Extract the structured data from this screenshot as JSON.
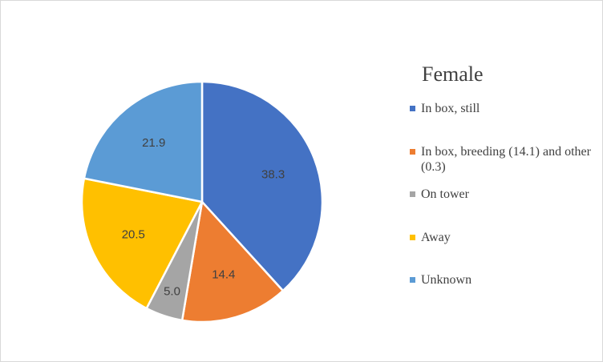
{
  "chart_data": {
    "type": "pie",
    "title": "Female",
    "categories": [
      "In box, still",
      "In box, breeding (14.1) and other (0.3)",
      "On tower",
      "Away",
      "Unknown"
    ],
    "values": [
      38.3,
      14.4,
      5.0,
      20.5,
      21.9
    ],
    "value_labels": [
      "38.3",
      "14.4",
      "5.0",
      "20.5",
      "21.9"
    ],
    "colors": [
      "#4472C4",
      "#ED7D31",
      "#A5A5A5",
      "#FFC000",
      "#5B9BD5"
    ],
    "slice_border_color": "#FFFFFF",
    "start": "12 o'clock, clockwise",
    "legend_position": "right"
  }
}
